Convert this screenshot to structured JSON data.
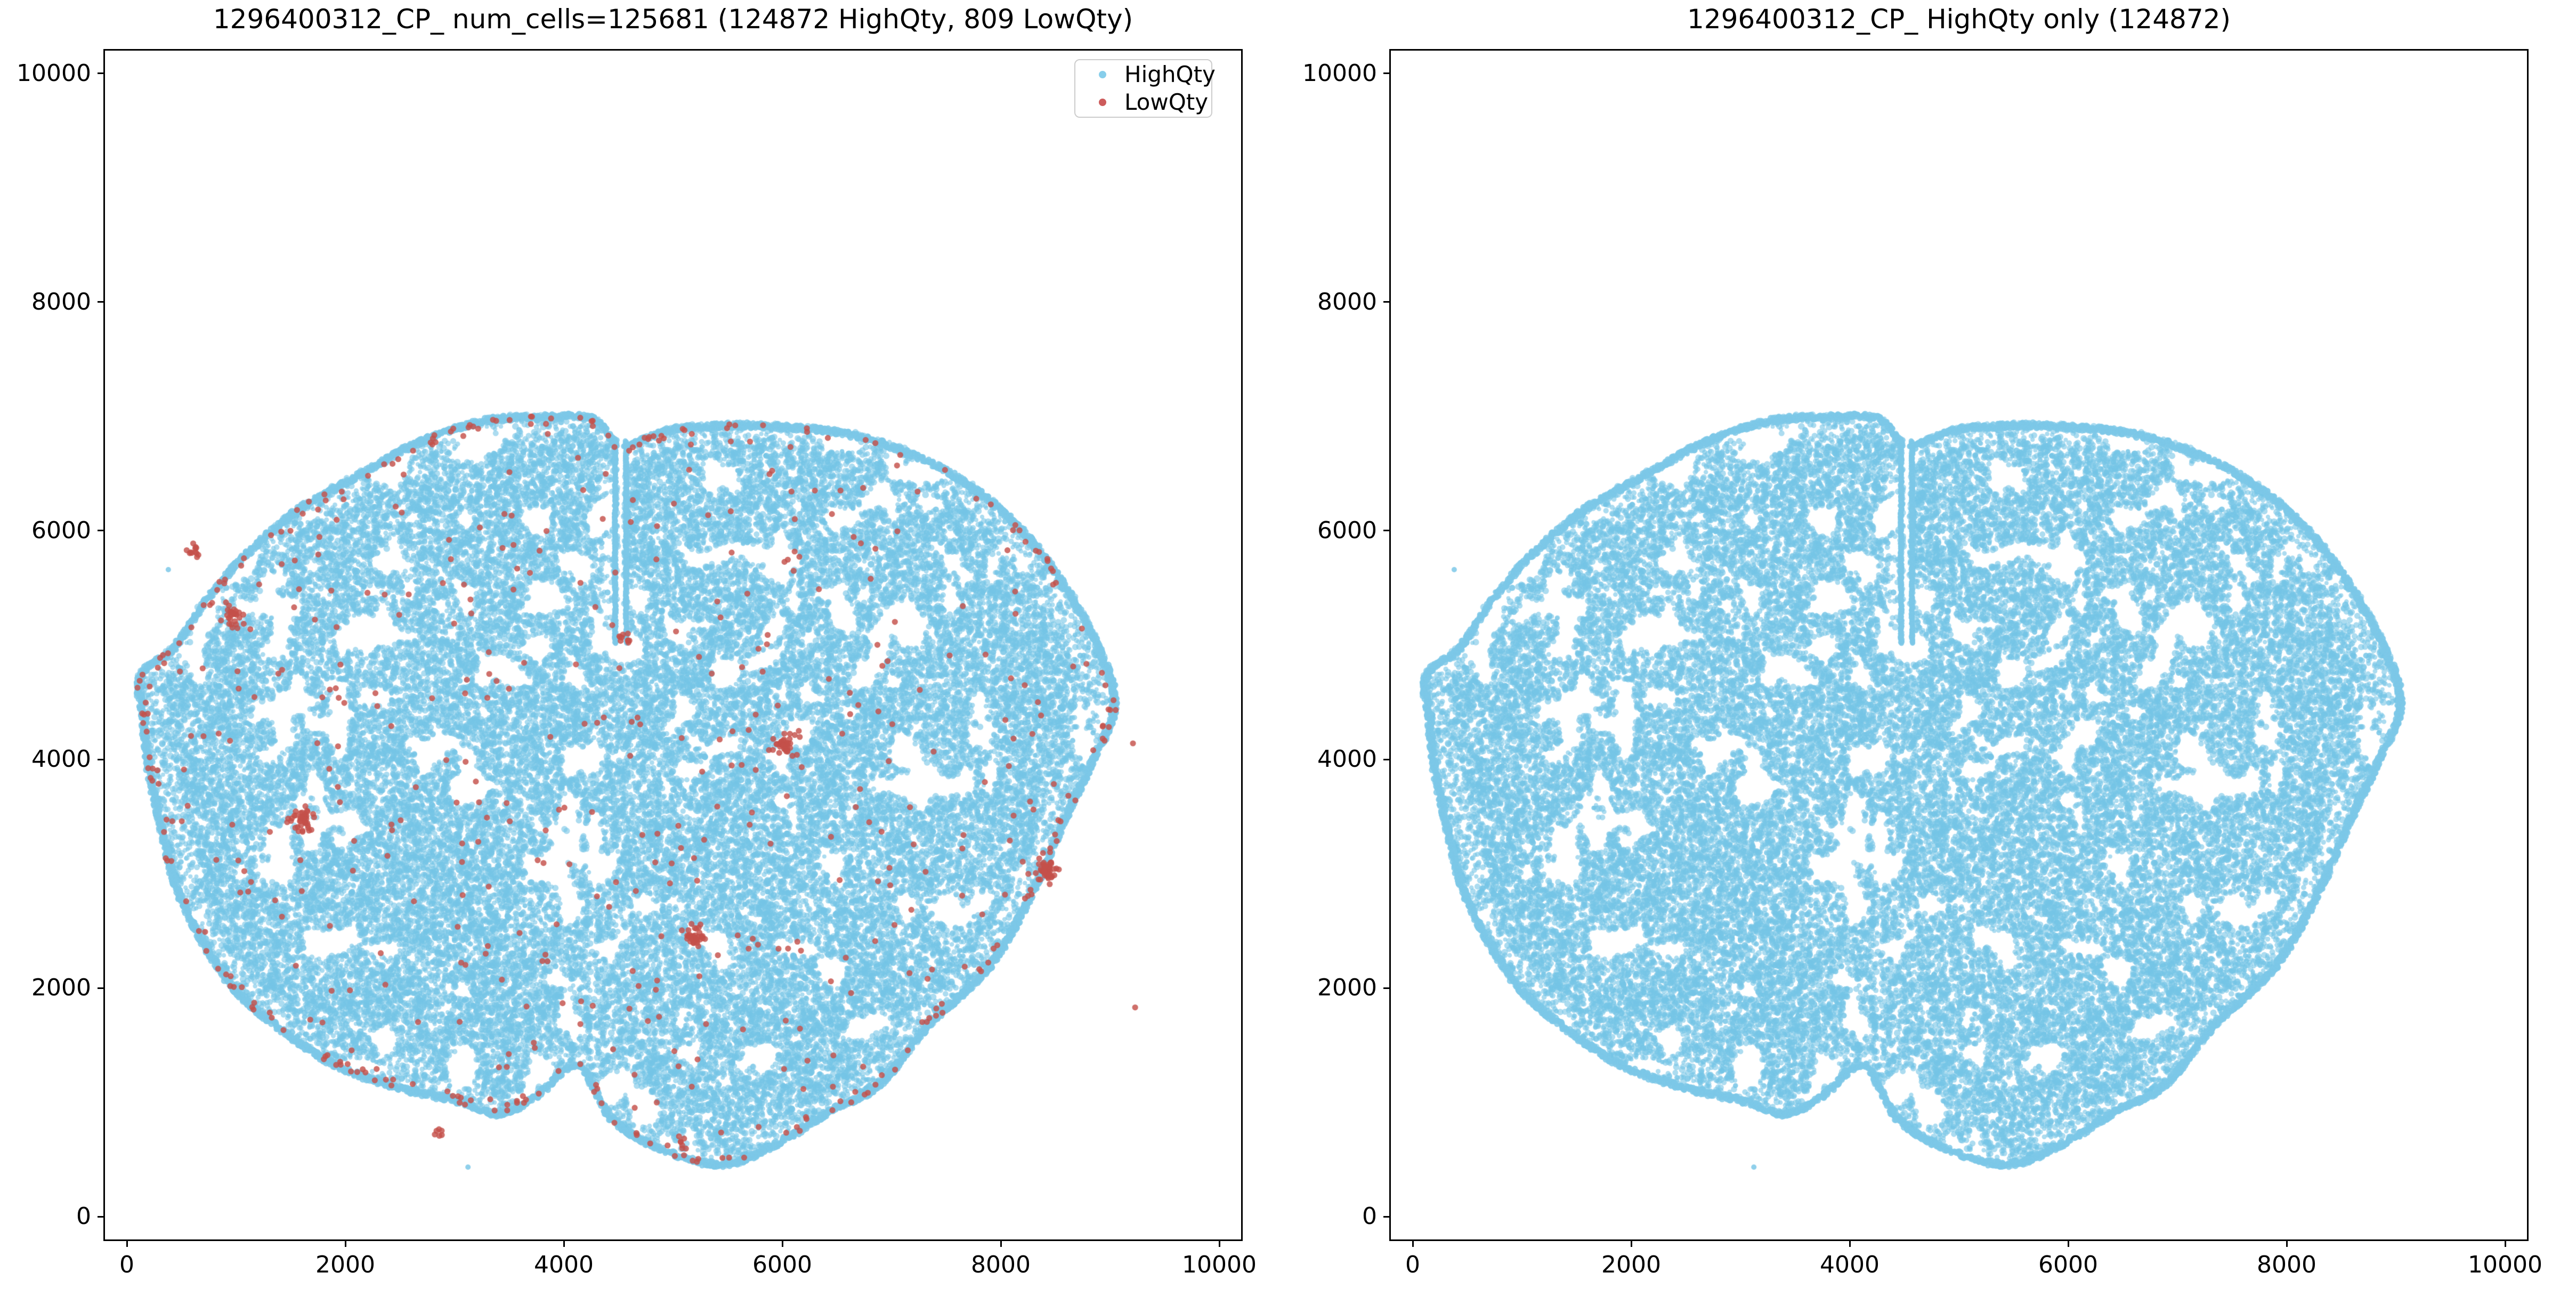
{
  "figure": {
    "background": "#ffffff"
  },
  "panels": [
    {
      "title": "1296400312_CP_ num_cells=125681 (124872 HighQty, 809 LowQty)",
      "x_ticks": [
        "0",
        "2000",
        "4000",
        "6000",
        "8000",
        "10000"
      ],
      "y_ticks": [
        "0",
        "2000",
        "4000",
        "6000",
        "8000",
        "10000"
      ],
      "has_legend": true,
      "show_lowqty": true
    },
    {
      "title": "1296400312_CP_ HighQty only (124872)",
      "x_ticks": [
        "0",
        "2000",
        "4000",
        "6000",
        "8000",
        "10000"
      ],
      "y_ticks": [
        "0",
        "2000",
        "4000",
        "6000",
        "8000",
        "10000"
      ],
      "has_legend": false,
      "show_lowqty": false
    }
  ],
  "legend": {
    "items": [
      {
        "label": "HighQty",
        "color": "#87ceeb"
      },
      {
        "label": "LowQty",
        "color": "#cd5c5c"
      }
    ]
  },
  "chart_data": {
    "type": "scatter",
    "xlim": [
      0,
      10000
    ],
    "ylim": [
      0,
      10000
    ],
    "view_margin": 200,
    "x_tick_values": [
      0,
      2000,
      4000,
      6000,
      8000,
      10000
    ],
    "y_tick_values": [
      0,
      2000,
      4000,
      6000,
      8000,
      10000
    ],
    "grid": false,
    "legend_position": "upper right (left panel only)",
    "series": [
      {
        "name": "HighQty",
        "count": 124872,
        "color": "#87ceeb",
        "description": "dense point cloud forming a coronal mouse-brain section; identical in both panels",
        "extent": {
          "x": [
            60,
            9120
          ],
          "y": [
            420,
            7020
          ]
        }
      },
      {
        "name": "LowQty",
        "count": 809,
        "color": "#cd5c5c",
        "description": "sparse points in left panel only; scattered inside the section, along the outer rim, and in small dense clusters",
        "cluster_centers": [
          [
            1620,
            3470
          ],
          [
            970,
            5240
          ],
          [
            610,
            5790
          ],
          [
            6020,
            4120
          ],
          [
            5210,
            2450
          ],
          [
            8420,
            3030
          ],
          [
            4560,
            5060
          ],
          [
            5050,
            640
          ],
          [
            2870,
            720
          ]
        ],
        "outliers": [
          [
            9210,
            4140
          ],
          [
            9230,
            1830
          ]
        ]
      }
    ],
    "render_model": {
      "seed_high": 1296003,
      "seed_low": 40312,
      "high_points_drawn": 46000,
      "high_dot_radius": 5.0,
      "high_fill": "rgba(116,196,230,0.60)",
      "crust_fill": "rgba(125,200,232,0.85)",
      "low_dot_radius": 5.6,
      "low_fill": "rgba(196,80,75,0.82)",
      "noise_scale1": 340,
      "noise_scale2": 130,
      "noise_threshold": 0.34,
      "rim_crust_step": 7,
      "rim_crust_jitter": 50,
      "rim_band_outer": 0.985,
      "rim_band_inner": 0.945,
      "rim_band_keep": 0.55,
      "centroid": [
        4650,
        3800
      ],
      "outline": [
        [
          4530,
          6765
        ],
        [
          4280,
          7005
        ],
        [
          3900,
          7020
        ],
        [
          3300,
          6990
        ],
        [
          2700,
          6810
        ],
        [
          2100,
          6500
        ],
        [
          1550,
          6200
        ],
        [
          1100,
          5830
        ],
        [
          700,
          5400
        ],
        [
          420,
          5000
        ],
        [
          100,
          4740
        ],
        [
          130,
          4350
        ],
        [
          170,
          3950
        ],
        [
          310,
          3320
        ],
        [
          480,
          2750
        ],
        [
          900,
          2050
        ],
        [
          1350,
          1650
        ],
        [
          1900,
          1300
        ],
        [
          2500,
          1100
        ],
        [
          3050,
          980
        ],
        [
          3420,
          870
        ],
        [
          3800,
          1060
        ],
        [
          4120,
          1300
        ],
        [
          4420,
          840
        ],
        [
          4900,
          560
        ],
        [
          5450,
          430
        ],
        [
          5980,
          620
        ],
        [
          6450,
          900
        ],
        [
          6900,
          1130
        ],
        [
          7350,
          1650
        ],
        [
          7900,
          2150
        ],
        [
          8300,
          2800
        ],
        [
          8600,
          3450
        ],
        [
          8850,
          3950
        ],
        [
          9070,
          4480
        ],
        [
          8880,
          5060
        ],
        [
          8540,
          5620
        ],
        [
          8140,
          6090
        ],
        [
          7540,
          6530
        ],
        [
          6740,
          6840
        ],
        [
          5890,
          6940
        ],
        [
          5150,
          6930
        ],
        [
          4820,
          6860
        ]
      ],
      "slit": {
        "x0": 4494,
        "x1": 4548,
        "y0": 5000,
        "y1": 6810
      },
      "void_ellipses": [
        {
          "x": 4560,
          "y": 4980,
          "rx": 170,
          "ry": 150,
          "rot": 0
        },
        {
          "x": 3760,
          "y": 4980,
          "rx": 130,
          "ry": 115,
          "rot": 0
        },
        {
          "x": 3480,
          "y": 4790,
          "rx": 230,
          "ry": 80,
          "rot": -0.5
        },
        {
          "x": 5830,
          "y": 4870,
          "rx": 200,
          "ry": 70,
          "rot": 0.5
        }
      ],
      "cluster_voids": [
        {
          "x": 1620,
          "y": 3470,
          "r": 85
        },
        {
          "x": 6020,
          "y": 4120,
          "r": 85
        },
        {
          "x": 5210,
          "y": 2450,
          "r": 100
        },
        {
          "x": 970,
          "y": 5240,
          "r": 65
        }
      ],
      "sparse_zones": [
        {
          "x0": 4330,
          "x1": 4480,
          "y0": 5050,
          "y1": 6550,
          "keep": 0.45
        },
        {
          "x0": 4245,
          "x1": 4295,
          "y0": 1350,
          "y1": 2600,
          "keep": 0.3
        }
      ],
      "stray_blue": [
        [
          3123,
          433
        ],
        [
          380,
          5660
        ]
      ],
      "low_clusters": [
        {
          "x": 1620,
          "y": 3470,
          "n": 40,
          "s": 55
        },
        {
          "x": 970,
          "y": 5240,
          "n": 26,
          "s": 45
        },
        {
          "x": 610,
          "y": 5790,
          "n": 12,
          "s": 35
        },
        {
          "x": 6020,
          "y": 4120,
          "n": 38,
          "s": 50
        },
        {
          "x": 5210,
          "y": 2450,
          "n": 34,
          "s": 48
        },
        {
          "x": 8420,
          "y": 3030,
          "n": 44,
          "s": 55
        },
        {
          "x": 4560,
          "y": 5060,
          "n": 10,
          "s": 40
        },
        {
          "x": 5050,
          "y": 640,
          "n": 7,
          "s": 35
        },
        {
          "x": 2870,
          "y": 720,
          "n": 6,
          "s": 30
        }
      ],
      "low_rim_count": 215,
      "low_total": 809
    }
  }
}
